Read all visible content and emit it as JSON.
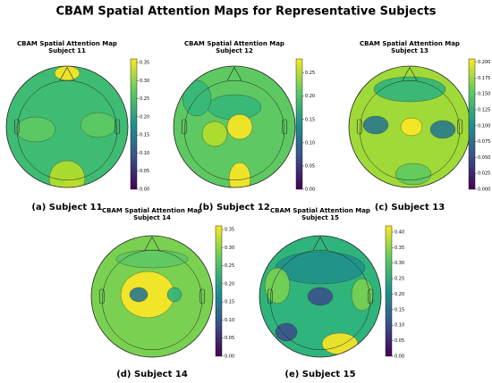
{
  "title": "CBAM Spatial Attention Maps for Representative Subjects",
  "chart_data": [
    {
      "type": "topomap",
      "title": "CBAM Spatial Attention Map",
      "subtitle": "Subject 11",
      "caption": "(a) Subject 11",
      "clim": [
        0,
        0.36
      ],
      "cticks": [
        {
          "value": 0,
          "label": "0.00"
        },
        0.05,
        {
          "value": 0.1,
          "label": "0.10"
        },
        0.15,
        {
          "value": 0.2,
          "label": "0.20"
        },
        0.25,
        {
          "value": 0.3,
          "label": "0.30"
        },
        0.35
      ]
    },
    {
      "type": "topomap",
      "title": "CBAM Spatial Attention Map",
      "subtitle": "Subject 12",
      "caption": "(b) Subject 12",
      "clim": [
        0,
        0.28
      ],
      "cticks": [
        {
          "value": 0,
          "label": "0.00"
        },
        0.05,
        {
          "value": 0.1,
          "label": "0.10"
        },
        0.15,
        {
          "value": 0.2,
          "label": "0.20"
        },
        0.25
      ]
    },
    {
      "type": "topomap",
      "title": "CBAM Spatial Attention Map",
      "subtitle": "Subject 13",
      "caption": "(c) Subject 13",
      "clim": [
        0,
        0.205
      ],
      "cticks": [
        {
          "value": 0,
          "label": "0.000"
        },
        0.025,
        {
          "value": 0.05,
          "label": "0.050"
        },
        0.075,
        {
          "value": 0.1,
          "label": "0.100"
        },
        0.125,
        {
          "value": 0.15,
          "label": "0.150"
        },
        0.175,
        {
          "value": 0.2,
          "label": "0.200"
        }
      ]
    },
    {
      "type": "topomap",
      "title": "CBAM Spatial Attention Map",
      "subtitle": "Subject 14",
      "caption": "(d) Subject 14",
      "clim": [
        0,
        0.36
      ],
      "cticks": [
        {
          "value": 0,
          "label": "0.00"
        },
        0.05,
        {
          "value": 0.1,
          "label": "0.10"
        },
        0.15,
        {
          "value": 0.2,
          "label": "0.20"
        },
        0.25,
        {
          "value": 0.3,
          "label": "0.30"
        },
        0.35
      ]
    },
    {
      "type": "topomap",
      "title": "CBAM Spatial Attention Map",
      "subtitle": "Subject 15",
      "caption": "(e) Subject 15",
      "clim": [
        0,
        0.42
      ],
      "cticks": [
        {
          "value": 0,
          "label": "0.00"
        },
        0.05,
        {
          "value": 0.1,
          "label": "0.10"
        },
        0.15,
        {
          "value": 0.2,
          "label": "0.20"
        },
        0.25,
        {
          "value": 0.3,
          "label": "0.30"
        },
        0.35,
        {
          "value": 0.4,
          "label": "0.40"
        }
      ]
    }
  ]
}
